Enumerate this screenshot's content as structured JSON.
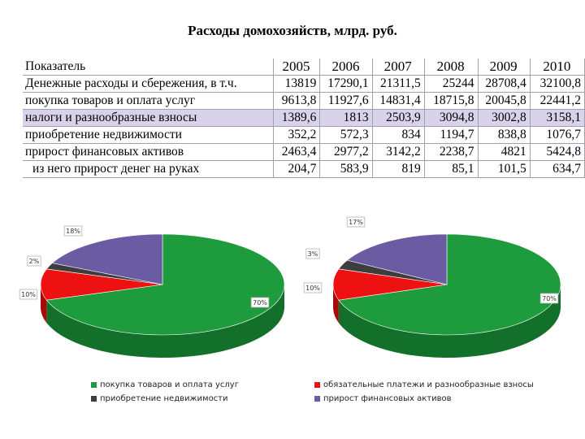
{
  "title": "Расходы домохозяйств, млрд. руб.",
  "table": {
    "header": [
      "Показатель",
      "2005",
      "2006",
      "2007",
      "2008",
      "2009",
      "2010"
    ],
    "rows": [
      [
        "Денежные расходы и сбережения, в т.ч.",
        "13819",
        "17290,1",
        "21311,5",
        "25244",
        "28708,4",
        "32100,8"
      ],
      [
        "покупка товаров и оплата услуг",
        "9613,8",
        "11927,6",
        "14831,4",
        "18715,8",
        "20045,8",
        "22441,2"
      ],
      [
        "налоги и разнообразные взносы",
        "1389,6",
        "1813",
        "2503,9",
        "3094,8",
        "3002,8",
        "3158,1"
      ],
      [
        "приобретение недвижимости",
        "352,2",
        "572,3",
        "834",
        "1194,7",
        "838,8",
        "1076,7"
      ],
      [
        "прирост финансовых активов",
        "2463,4",
        "2977,2",
        "3142,2",
        "2238,7",
        "4821",
        "5424,8"
      ],
      [
        "из него прирост денег на руках",
        "204,7",
        "583,9",
        "819",
        "85,1",
        "101,5",
        "634,7"
      ]
    ]
  },
  "chart_data": [
    {
      "type": "pie",
      "slices": [
        {
          "label": "покупка товаров и оплата услуг",
          "value": 70,
          "text": "70%",
          "color": "#1e9b3c",
          "side": "#12702a"
        },
        {
          "label": "обязательные платежи и разнообразные взносы",
          "value": 10,
          "text": "10%",
          "color": "#ee1111",
          "side": "#a80a0a"
        },
        {
          "label": "приобретение недвижимости",
          "value": 2,
          "text": "2%",
          "color": "#3d3d3d",
          "side": "#222222"
        },
        {
          "label": "прирост финансовых активов",
          "value": 18,
          "text": "18%",
          "color": "#6b5ba3",
          "side": "#483c78"
        }
      ]
    },
    {
      "type": "pie",
      "slices": [
        {
          "label": "покупка товаров и оплата услуг",
          "value": 70,
          "text": "70%",
          "color": "#1e9b3c",
          "side": "#12702a"
        },
        {
          "label": "обязательные платежи и разнообразные взносы",
          "value": 10,
          "text": "10%",
          "color": "#ee1111",
          "side": "#a80a0a"
        },
        {
          "label": "приобретение недвижимости",
          "value": 3,
          "text": "3%",
          "color": "#3d3d3d",
          "side": "#222222"
        },
        {
          "label": "прирост финансовых активов",
          "value": 17,
          "text": "17%",
          "color": "#6b5ba3",
          "side": "#483c78"
        }
      ]
    }
  ],
  "legend": [
    {
      "label": "покупка товаров и оплата услуг",
      "color": "#1e9b3c"
    },
    {
      "label": "обязательные платежи и разнообразные взносы",
      "color": "#ee1111"
    },
    {
      "label": "приобретение недвижимости",
      "color": "#3d3d3d"
    },
    {
      "label": "прирост финансовых активов",
      "color": "#6b5ba3"
    }
  ]
}
